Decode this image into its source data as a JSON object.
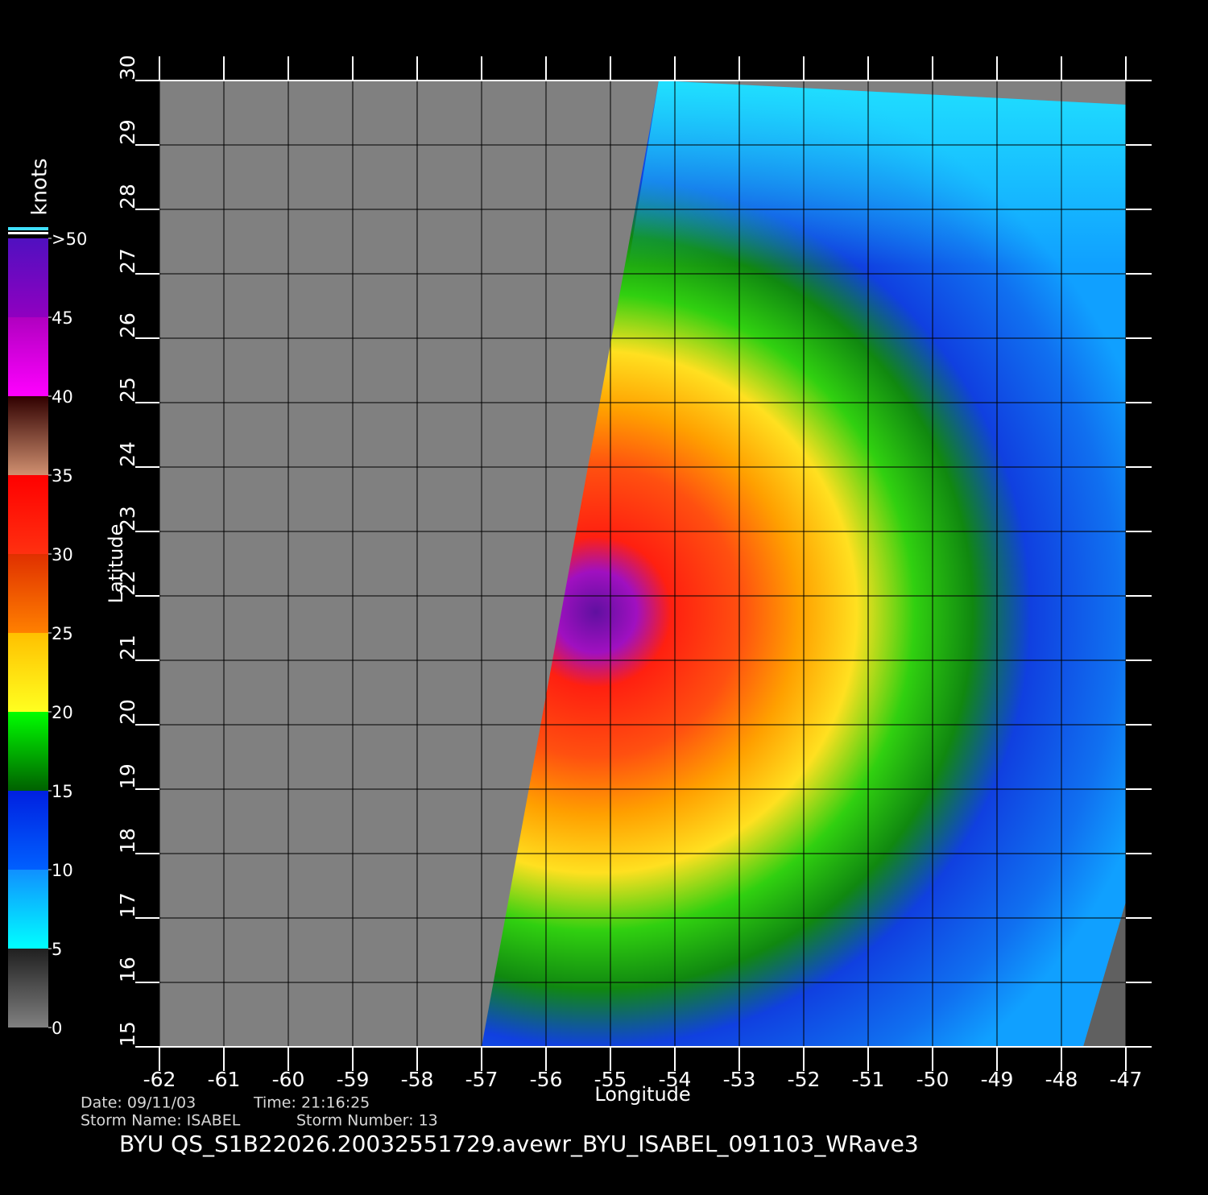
{
  "map": {
    "title": "BYU  QS_S1B22026.20032551729.avewr_BYU_ISABEL_091103_WRave3",
    "x_label": "Longitude",
    "y_label": "Latitude",
    "colorbar_label": "knots",
    "xlim": [
      -62,
      -47
    ],
    "ylim": [
      15,
      30
    ],
    "xticks": [
      -62,
      -61,
      -60,
      -59,
      -58,
      -57,
      -56,
      -55,
      -54,
      -53,
      -52,
      -51,
      -50,
      -49,
      -48,
      -47
    ],
    "yticks": [
      15,
      16,
      17,
      18,
      19,
      20,
      21,
      22,
      23,
      24,
      25,
      26,
      27,
      28,
      29,
      30
    ],
    "colorbar_lim": [
      0,
      50
    ],
    "colorbar_ticks": [
      0,
      5,
      10,
      15,
      20,
      25,
      30,
      35,
      40,
      45,
      {
        "value": 50,
        "label": ">50"
      }
    ],
    "info": [
      "Date: 09/11/03",
      "Time: 21:16:25",
      "Storm Name: ISABEL",
      "Storm Number: 13"
    ]
  }
}
